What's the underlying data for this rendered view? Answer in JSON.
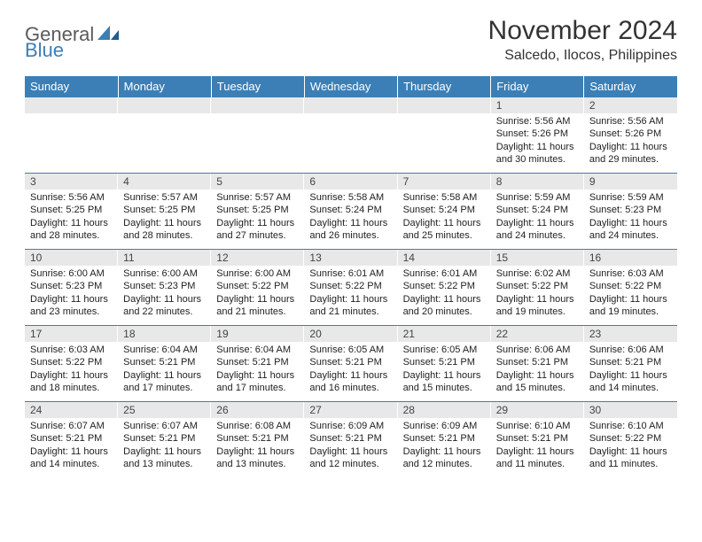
{
  "logo": {
    "part1": "General",
    "part2": "Blue"
  },
  "title": "November 2024",
  "location": "Salcedo, Ilocos, Philippines",
  "colors": {
    "header_bg": "#3b7fb6",
    "header_fg": "#ffffff",
    "daynum_bg": "#e8e8e8",
    "rule": "#3b7fb6",
    "text": "#222222",
    "logo_gray": "#5a5a5a",
    "logo_blue": "#3b7fb6"
  },
  "weekdays": [
    "Sunday",
    "Monday",
    "Tuesday",
    "Wednesday",
    "Thursday",
    "Friday",
    "Saturday"
  ],
  "weeks": [
    [
      null,
      null,
      null,
      null,
      null,
      {
        "n": "1",
        "sr": "5:56 AM",
        "ss": "5:26 PM",
        "dl": "11 hours and 30 minutes."
      },
      {
        "n": "2",
        "sr": "5:56 AM",
        "ss": "5:26 PM",
        "dl": "11 hours and 29 minutes."
      }
    ],
    [
      {
        "n": "3",
        "sr": "5:56 AM",
        "ss": "5:25 PM",
        "dl": "11 hours and 28 minutes."
      },
      {
        "n": "4",
        "sr": "5:57 AM",
        "ss": "5:25 PM",
        "dl": "11 hours and 28 minutes."
      },
      {
        "n": "5",
        "sr": "5:57 AM",
        "ss": "5:25 PM",
        "dl": "11 hours and 27 minutes."
      },
      {
        "n": "6",
        "sr": "5:58 AM",
        "ss": "5:24 PM",
        "dl": "11 hours and 26 minutes."
      },
      {
        "n": "7",
        "sr": "5:58 AM",
        "ss": "5:24 PM",
        "dl": "11 hours and 25 minutes."
      },
      {
        "n": "8",
        "sr": "5:59 AM",
        "ss": "5:24 PM",
        "dl": "11 hours and 24 minutes."
      },
      {
        "n": "9",
        "sr": "5:59 AM",
        "ss": "5:23 PM",
        "dl": "11 hours and 24 minutes."
      }
    ],
    [
      {
        "n": "10",
        "sr": "6:00 AM",
        "ss": "5:23 PM",
        "dl": "11 hours and 23 minutes."
      },
      {
        "n": "11",
        "sr": "6:00 AM",
        "ss": "5:23 PM",
        "dl": "11 hours and 22 minutes."
      },
      {
        "n": "12",
        "sr": "6:00 AM",
        "ss": "5:22 PM",
        "dl": "11 hours and 21 minutes."
      },
      {
        "n": "13",
        "sr": "6:01 AM",
        "ss": "5:22 PM",
        "dl": "11 hours and 21 minutes."
      },
      {
        "n": "14",
        "sr": "6:01 AM",
        "ss": "5:22 PM",
        "dl": "11 hours and 20 minutes."
      },
      {
        "n": "15",
        "sr": "6:02 AM",
        "ss": "5:22 PM",
        "dl": "11 hours and 19 minutes."
      },
      {
        "n": "16",
        "sr": "6:03 AM",
        "ss": "5:22 PM",
        "dl": "11 hours and 19 minutes."
      }
    ],
    [
      {
        "n": "17",
        "sr": "6:03 AM",
        "ss": "5:22 PM",
        "dl": "11 hours and 18 minutes."
      },
      {
        "n": "18",
        "sr": "6:04 AM",
        "ss": "5:21 PM",
        "dl": "11 hours and 17 minutes."
      },
      {
        "n": "19",
        "sr": "6:04 AM",
        "ss": "5:21 PM",
        "dl": "11 hours and 17 minutes."
      },
      {
        "n": "20",
        "sr": "6:05 AM",
        "ss": "5:21 PM",
        "dl": "11 hours and 16 minutes."
      },
      {
        "n": "21",
        "sr": "6:05 AM",
        "ss": "5:21 PM",
        "dl": "11 hours and 15 minutes."
      },
      {
        "n": "22",
        "sr": "6:06 AM",
        "ss": "5:21 PM",
        "dl": "11 hours and 15 minutes."
      },
      {
        "n": "23",
        "sr": "6:06 AM",
        "ss": "5:21 PM",
        "dl": "11 hours and 14 minutes."
      }
    ],
    [
      {
        "n": "24",
        "sr": "6:07 AM",
        "ss": "5:21 PM",
        "dl": "11 hours and 14 minutes."
      },
      {
        "n": "25",
        "sr": "6:07 AM",
        "ss": "5:21 PM",
        "dl": "11 hours and 13 minutes."
      },
      {
        "n": "26",
        "sr": "6:08 AM",
        "ss": "5:21 PM",
        "dl": "11 hours and 13 minutes."
      },
      {
        "n": "27",
        "sr": "6:09 AM",
        "ss": "5:21 PM",
        "dl": "11 hours and 12 minutes."
      },
      {
        "n": "28",
        "sr": "6:09 AM",
        "ss": "5:21 PM",
        "dl": "11 hours and 12 minutes."
      },
      {
        "n": "29",
        "sr": "6:10 AM",
        "ss": "5:21 PM",
        "dl": "11 hours and 11 minutes."
      },
      {
        "n": "30",
        "sr": "6:10 AM",
        "ss": "5:22 PM",
        "dl": "11 hours and 11 minutes."
      }
    ]
  ],
  "labels": {
    "sunrise": "Sunrise: ",
    "sunset": "Sunset: ",
    "daylight": "Daylight: "
  }
}
